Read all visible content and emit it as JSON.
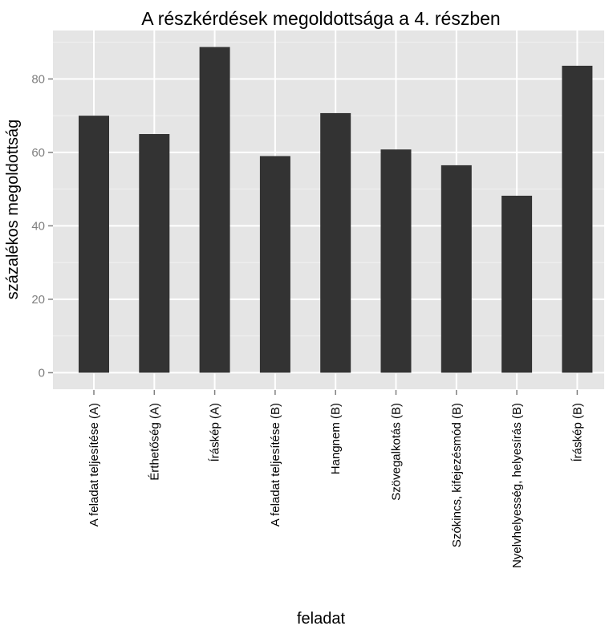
{
  "chart_data": {
    "type": "bar",
    "title": "A részkérdések megoldottsága a 4. részben",
    "xlabel": "feladat",
    "ylabel": "százalékos megoldottság",
    "categories": [
      "A feladat teljesítése (A)",
      "Érthetőség (A)",
      "Íráskép (A)",
      "A feladat teljesítése (B)",
      "Hangnem (B)",
      "Szövegalkotás (B)",
      "Szókincs, kifejezésmód (B)",
      "Nyelvhelyesség, helyesírás (B)",
      "Íráskép (B)"
    ],
    "values": [
      70,
      65,
      88.7,
      59,
      70.7,
      60.8,
      56.5,
      48.2,
      83.6
    ],
    "yticks": [
      0,
      20,
      40,
      60,
      80
    ],
    "ytick_labels": [
      "0",
      "20",
      "40",
      "60",
      "80"
    ],
    "ylim": [
      -4.5,
      93.2
    ],
    "grid": true,
    "colors": {
      "bar": "#333333",
      "panel_background": "#e5e5e5",
      "grid_major": "#ffffff",
      "grid_minor": "#f2f2f2",
      "tick_label": "#7f7f7f"
    }
  }
}
